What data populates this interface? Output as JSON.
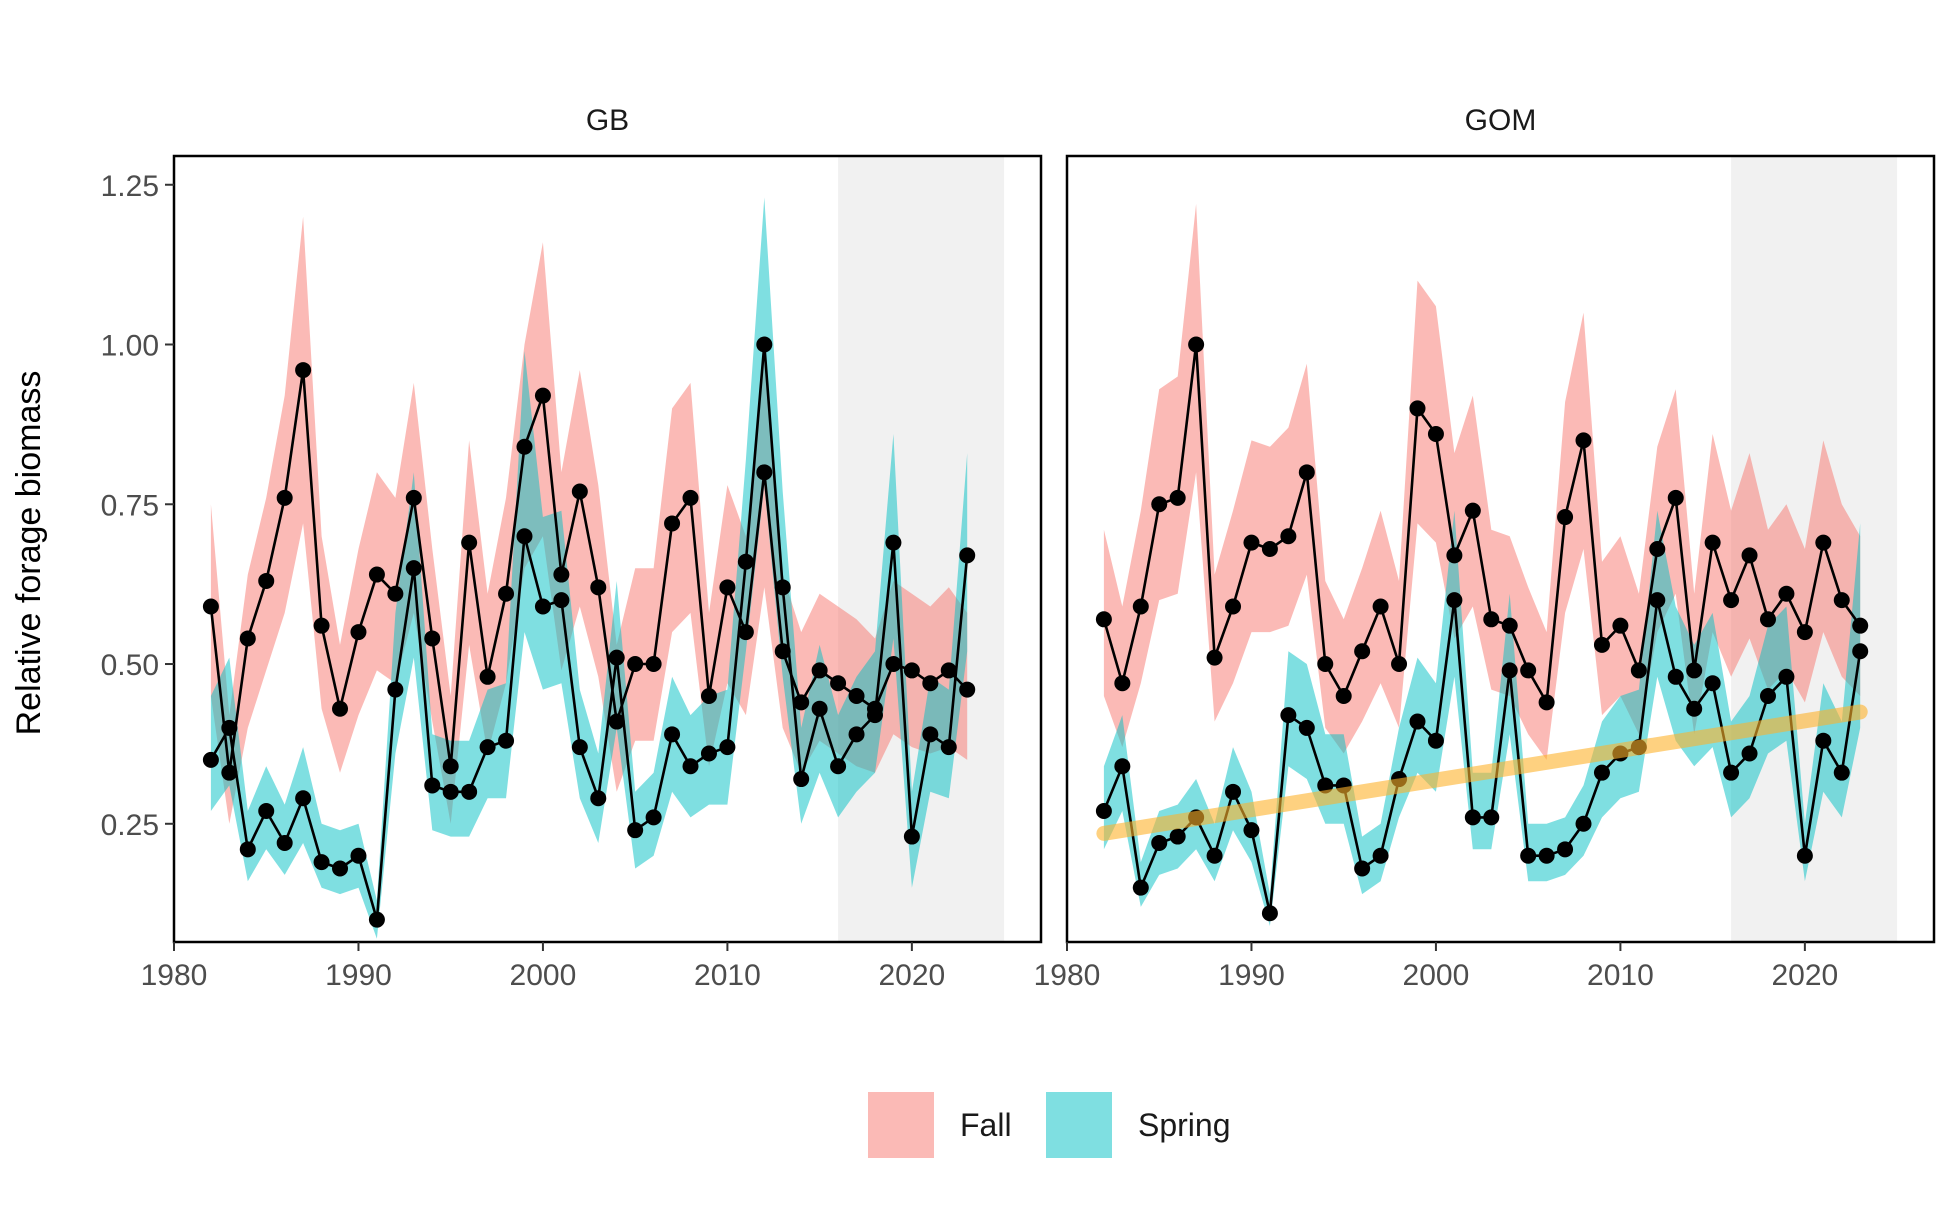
{
  "chart_data": {
    "type": "line",
    "ylabel": "Relative forage biomass",
    "xlabel": "",
    "xlim": [
      1980,
      2027
    ],
    "ylim": [
      0.065,
      1.295
    ],
    "x_ticks": [
      1980,
      1990,
      2000,
      2010,
      2020
    ],
    "y_ticks": [
      0.25,
      0.5,
      0.75,
      1.0
    ],
    "y_tick_labels": [
      "0.25",
      "0.50",
      "0.75",
      "1.00"
    ],
    "y_tick_1_25": "1.25",
    "shaded_period": [
      2016,
      2025
    ],
    "legend": {
      "position": "bottom",
      "items": [
        {
          "label": "Fall",
          "color": "#F8766D"
        },
        {
          "label": "Spring",
          "color": "#00BFC4"
        }
      ]
    },
    "colors": {
      "fall_fill": "#F8766D",
      "spring_fill": "#00BFC4",
      "trend": "#FDB32B",
      "line": "#000000",
      "shade": "#E5E5E5"
    },
    "panels": [
      {
        "label": "GB",
        "years": [
          1982,
          1983,
          1984,
          1985,
          1986,
          1987,
          1988,
          1989,
          1990,
          1991,
          1992,
          1993,
          1994,
          1995,
          1996,
          1997,
          1998,
          1999,
          2000,
          2001,
          2002,
          2003,
          2004,
          2005,
          2006,
          2007,
          2008,
          2009,
          2010,
          2011,
          2012,
          2013,
          2014,
          2015,
          2016,
          2017,
          2018,
          2019,
          2020,
          2021,
          2022,
          2023
        ],
        "series": [
          {
            "name": "Fall",
            "values": [
              0.59,
              0.33,
              0.54,
              0.63,
              0.76,
              0.96,
              0.56,
              0.43,
              0.55,
              0.64,
              0.61,
              0.76,
              0.54,
              0.34,
              0.69,
              0.48,
              0.61,
              0.84,
              0.92,
              0.64,
              0.77,
              0.62,
              0.41,
              0.5,
              0.5,
              0.72,
              0.76,
              0.45,
              0.62,
              0.55,
              0.8,
              0.52,
              0.44,
              0.49,
              0.47,
              0.45,
              0.43,
              0.5,
              0.49,
              0.47,
              0.49,
              0.46
            ],
            "upper": [
              0.75,
              0.42,
              0.64,
              0.76,
              0.92,
              1.2,
              0.7,
              0.53,
              0.68,
              0.8,
              0.76,
              0.94,
              0.68,
              0.45,
              0.85,
              0.61,
              0.76,
              1.0,
              1.16,
              0.8,
              0.96,
              0.78,
              0.53,
              0.65,
              0.65,
              0.9,
              0.94,
              0.58,
              0.78,
              0.7,
              0.98,
              0.64,
              0.55,
              0.61,
              0.59,
              0.57,
              0.54,
              0.63,
              0.61,
              0.59,
              0.62,
              0.58
            ],
            "lower": [
              0.45,
              0.25,
              0.4,
              0.49,
              0.58,
              0.72,
              0.43,
              0.33,
              0.42,
              0.49,
              0.47,
              0.58,
              0.41,
              0.25,
              0.53,
              0.36,
              0.47,
              0.65,
              0.7,
              0.49,
              0.59,
              0.48,
              0.3,
              0.38,
              0.38,
              0.55,
              0.58,
              0.34,
              0.47,
              0.42,
              0.62,
              0.4,
              0.33,
              0.38,
              0.36,
              0.34,
              0.33,
              0.39,
              0.37,
              0.36,
              0.37,
              0.35
            ]
          },
          {
            "name": "Spring",
            "values": [
              0.35,
              0.4,
              0.21,
              0.27,
              0.22,
              0.29,
              0.19,
              0.18,
              0.2,
              0.1,
              0.46,
              0.65,
              0.31,
              0.3,
              0.3,
              0.37,
              0.38,
              0.7,
              0.59,
              0.6,
              0.37,
              0.29,
              0.51,
              0.24,
              0.26,
              0.39,
              0.34,
              0.36,
              0.37,
              0.66,
              1.0,
              0.62,
              0.32,
              0.43,
              0.34,
              0.39,
              0.42,
              0.69,
              0.23,
              0.39,
              0.37,
              0.67
            ],
            "upper": [
              0.45,
              0.51,
              0.27,
              0.34,
              0.28,
              0.37,
              0.25,
              0.24,
              0.25,
              0.13,
              0.58,
              0.8,
              0.39,
              0.38,
              0.38,
              0.46,
              0.47,
              0.99,
              0.73,
              0.74,
              0.46,
              0.36,
              0.63,
              0.3,
              0.33,
              0.48,
              0.42,
              0.45,
              0.46,
              0.82,
              1.23,
              0.77,
              0.4,
              0.53,
              0.42,
              0.48,
              0.52,
              0.86,
              0.3,
              0.48,
              0.46,
              0.83
            ],
            "lower": [
              0.27,
              0.31,
              0.16,
              0.21,
              0.17,
              0.22,
              0.15,
              0.14,
              0.15,
              0.07,
              0.36,
              0.51,
              0.24,
              0.23,
              0.23,
              0.29,
              0.29,
              0.55,
              0.46,
              0.47,
              0.29,
              0.22,
              0.4,
              0.18,
              0.2,
              0.3,
              0.26,
              0.28,
              0.28,
              0.52,
              0.78,
              0.48,
              0.25,
              0.33,
              0.26,
              0.3,
              0.33,
              0.54,
              0.15,
              0.3,
              0.29,
              0.52
            ]
          }
        ],
        "trend": null
      },
      {
        "label": "GOM",
        "years": [
          1982,
          1983,
          1984,
          1985,
          1986,
          1987,
          1988,
          1989,
          1990,
          1991,
          1992,
          1993,
          1994,
          1995,
          1996,
          1997,
          1998,
          1999,
          2000,
          2001,
          2002,
          2003,
          2004,
          2005,
          2006,
          2007,
          2008,
          2009,
          2010,
          2011,
          2012,
          2013,
          2014,
          2015,
          2016,
          2017,
          2018,
          2019,
          2020,
          2021,
          2022,
          2023
        ],
        "series": [
          {
            "name": "Fall",
            "values": [
              0.57,
              0.47,
              0.59,
              0.75,
              0.76,
              1.0,
              0.51,
              0.59,
              0.69,
              0.68,
              0.7,
              0.8,
              0.5,
              0.45,
              0.52,
              0.59,
              0.5,
              0.9,
              0.86,
              0.67,
              0.74,
              0.57,
              0.56,
              0.49,
              0.44,
              0.73,
              0.85,
              0.53,
              0.56,
              0.49,
              0.68,
              0.76,
              0.49,
              0.69,
              0.6,
              0.67,
              0.57,
              0.61,
              0.55,
              0.69,
              0.6,
              0.56
            ],
            "upper": [
              0.71,
              0.59,
              0.74,
              0.93,
              0.95,
              1.22,
              0.64,
              0.74,
              0.85,
              0.84,
              0.87,
              0.97,
              0.63,
              0.57,
              0.65,
              0.74,
              0.63,
              1.1,
              1.06,
              0.83,
              0.92,
              0.71,
              0.7,
              0.62,
              0.55,
              0.91,
              1.05,
              0.66,
              0.7,
              0.61,
              0.84,
              0.93,
              0.61,
              0.86,
              0.74,
              0.83,
              0.71,
              0.75,
              0.68,
              0.85,
              0.75,
              0.7
            ],
            "lower": [
              0.45,
              0.37,
              0.47,
              0.6,
              0.61,
              0.8,
              0.41,
              0.47,
              0.55,
              0.55,
              0.56,
              0.64,
              0.4,
              0.36,
              0.41,
              0.47,
              0.4,
              0.72,
              0.69,
              0.54,
              0.59,
              0.46,
              0.45,
              0.39,
              0.35,
              0.58,
              0.68,
              0.42,
              0.45,
              0.39,
              0.55,
              0.61,
              0.39,
              0.55,
              0.48,
              0.54,
              0.46,
              0.49,
              0.44,
              0.55,
              0.48,
              0.45
            ]
          },
          {
            "name": "Spring",
            "values": [
              0.27,
              0.34,
              0.15,
              0.22,
              0.23,
              0.26,
              0.2,
              0.3,
              0.24,
              0.11,
              0.42,
              0.4,
              0.31,
              0.31,
              0.18,
              0.2,
              0.32,
              0.41,
              0.38,
              0.6,
              0.26,
              0.26,
              0.49,
              0.2,
              0.2,
              0.21,
              0.25,
              0.33,
              0.36,
              0.37,
              0.6,
              0.48,
              0.43,
              0.47,
              0.33,
              0.36,
              0.45,
              0.48,
              0.2,
              0.38,
              0.33,
              0.52
            ],
            "upper": [
              0.34,
              0.42,
              0.19,
              0.27,
              0.28,
              0.32,
              0.25,
              0.37,
              0.3,
              0.14,
              0.52,
              0.5,
              0.39,
              0.39,
              0.23,
              0.25,
              0.4,
              0.51,
              0.47,
              0.74,
              0.33,
              0.33,
              0.61,
              0.25,
              0.25,
              0.26,
              0.31,
              0.41,
              0.45,
              0.46,
              0.74,
              0.59,
              0.53,
              0.58,
              0.41,
              0.45,
              0.56,
              0.59,
              0.25,
              0.47,
              0.41,
              0.72
            ],
            "lower": [
              0.21,
              0.27,
              0.12,
              0.17,
              0.18,
              0.21,
              0.16,
              0.24,
              0.19,
              0.09,
              0.34,
              0.32,
              0.25,
              0.25,
              0.14,
              0.16,
              0.26,
              0.33,
              0.3,
              0.48,
              0.21,
              0.21,
              0.39,
              0.16,
              0.16,
              0.17,
              0.2,
              0.26,
              0.29,
              0.3,
              0.48,
              0.38,
              0.34,
              0.37,
              0.26,
              0.29,
              0.36,
              0.38,
              0.16,
              0.3,
              0.26,
              0.4
            ]
          }
        ],
        "trend": {
          "x": [
            1982,
            2023
          ],
          "y": [
            0.235,
            0.425
          ]
        }
      }
    ]
  }
}
